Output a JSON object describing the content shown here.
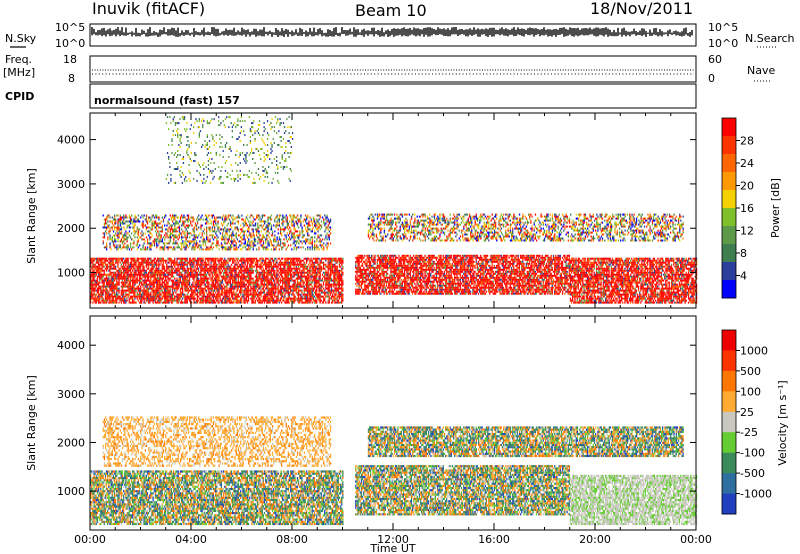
{
  "header": {
    "station": "Inuvik (fitACF)",
    "beam": "Beam 10",
    "date": "18/Nov/2011"
  },
  "info_panels": {
    "nsky_label": "N.Sky",
    "nsky_ticks": [
      "10^5",
      "10^0"
    ],
    "nsearch_label": "N.Search",
    "nsearch_ticks": [
      "10^5",
      "10^0"
    ],
    "freq_label_1": "Freq.",
    "freq_label_2": "[MHz]",
    "freq_ticks": [
      "18",
      "8"
    ],
    "nave_label": "Nave",
    "nave_ticks": [
      "60",
      "0"
    ],
    "cpid_label": "CPID",
    "cpid_text": "normalsound (fast) 157"
  },
  "chart_data": [
    {
      "type": "heatmap",
      "name": "power",
      "ylabel": "Slant Range [km]",
      "yticks": [
        "1000",
        "2000",
        "3000",
        "4000"
      ],
      "ylim": [
        200,
        4600
      ],
      "xlim": [
        0,
        24
      ],
      "colorbar": {
        "label": "Power [dB]",
        "ticks": [
          "28",
          "24",
          "20",
          "16",
          "12",
          "8",
          "4"
        ],
        "colors": [
          "#0000ff",
          "#2a3f9b",
          "#3d7d50",
          "#5c9a4a",
          "#7fbf2a",
          "#f5d000",
          "#ff9900",
          "#ff6600",
          "#ff3300",
          "#ff0000"
        ]
      },
      "echo_bands": [
        {
          "t0": 0.0,
          "t1": 10.0,
          "r0": 300,
          "r1": 1300,
          "level": "high"
        },
        {
          "t0": 10.5,
          "t1": 19.0,
          "r0": 500,
          "r1": 1400,
          "level": "high"
        },
        {
          "t0": 19.0,
          "t1": 24.0,
          "r0": 300,
          "r1": 1300,
          "level": "high"
        },
        {
          "t0": 0.5,
          "t1": 9.5,
          "r0": 1500,
          "r1": 2300,
          "level": "mid"
        },
        {
          "t0": 11.0,
          "t1": 23.5,
          "r0": 1700,
          "r1": 2300,
          "level": "mid"
        },
        {
          "t0": 3.0,
          "t1": 8.0,
          "r0": 3000,
          "r1": 4500,
          "level": "low"
        }
      ]
    },
    {
      "type": "heatmap",
      "name": "velocity",
      "ylabel": "Slant Range [km]",
      "yticks": [
        "1000",
        "2000",
        "3000",
        "4000"
      ],
      "ylim": [
        200,
        4600
      ],
      "xlim": [
        0,
        24
      ],
      "xlabel": "Time UT",
      "xticks": [
        "00:00",
        "04:00",
        "08:00",
        "12:00",
        "16:00",
        "20:00",
        "00:00"
      ],
      "colorbar": {
        "label": "Velocity [m s⁻¹]",
        "ticks": [
          "1000",
          "500",
          "100",
          "25",
          "-25",
          "-100",
          "-500",
          "-1000"
        ],
        "colors": [
          "#2040c0",
          "#2f6fa0",
          "#3a8a5a",
          "#66cc33",
          "#c8c8be",
          "#ffaa33",
          "#ff7700",
          "#ff3300",
          "#ee0000"
        ]
      },
      "echo_bands": [
        {
          "t0": 0.0,
          "t1": 10.0,
          "r0": 300,
          "r1": 1400,
          "level": "mixed"
        },
        {
          "t0": 10.5,
          "t1": 19.0,
          "r0": 500,
          "r1": 1500,
          "level": "mixed"
        },
        {
          "t0": 19.0,
          "t1": 24.0,
          "r0": 300,
          "r1": 1300,
          "level": "grey"
        },
        {
          "t0": 0.5,
          "t1": 9.5,
          "r0": 1500,
          "r1": 2500,
          "level": "orange"
        },
        {
          "t0": 11.0,
          "t1": 23.5,
          "r0": 1700,
          "r1": 2300,
          "level": "mixed"
        }
      ]
    }
  ]
}
